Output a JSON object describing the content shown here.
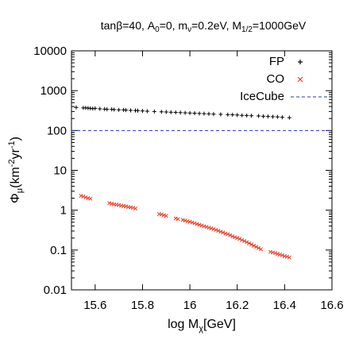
{
  "chart_data": {
    "type": "scatter",
    "title": {
      "main": "tanβ=40, A",
      "a0_sub": "0",
      "a0_rest": "=0, m",
      "nu_sub": "ν",
      "nu_rest": "=0.2eV, M",
      "m12_sub": "1/2",
      "m12_rest": "=1000GeV"
    },
    "xlabel": {
      "main": "log M",
      "sub": "χ",
      "rest": "[GeV]"
    },
    "ylabel": {
      "main": "Φ",
      "sub": "μ",
      "a": "(km",
      "sup1": "-2",
      "b": "yr",
      "sup2": "-1",
      "c": ")"
    },
    "xlim": [
      15.5,
      16.6
    ],
    "ylim": [
      0.01,
      10000
    ],
    "yscale": "log",
    "x_ticks": [
      15.6,
      15.8,
      16,
      16.2,
      16.4,
      16.6
    ],
    "x_tick_labels": [
      "15.6",
      "15.8",
      "16",
      "16.2",
      "16.4",
      "16.6"
    ],
    "y_ticks": [
      0.01,
      0.1,
      1,
      10,
      100,
      1000,
      10000
    ],
    "y_tick_labels": [
      "0.01",
      "0.1",
      "1",
      "10",
      "100",
      "1000",
      "10000"
    ],
    "grid": false,
    "legend_position": "top-right",
    "series": [
      {
        "name": "FP",
        "marker": "plus",
        "color": "#000000",
        "x": [
          15.52,
          15.55,
          15.56,
          15.57,
          15.58,
          15.59,
          15.6,
          15.62,
          15.64,
          15.65,
          15.67,
          15.68,
          15.7,
          15.72,
          15.73,
          15.75,
          15.77,
          15.78,
          15.8,
          15.82,
          15.85,
          15.88,
          15.9,
          15.92,
          15.94,
          15.96,
          15.98,
          16.0,
          16.02,
          16.04,
          16.06,
          16.08,
          16.1,
          16.13,
          16.16,
          16.18,
          16.2,
          16.22,
          16.24,
          16.26,
          16.29,
          16.31,
          16.33,
          16.35,
          16.37,
          16.39,
          16.42
        ],
        "y": [
          380,
          370,
          370,
          365,
          360,
          355,
          360,
          350,
          345,
          340,
          340,
          335,
          330,
          330,
          325,
          320,
          318,
          315,
          310,
          305,
          300,
          295,
          292,
          288,
          285,
          282,
          278,
          275,
          272,
          268,
          265,
          262,
          258,
          255,
          250,
          248,
          245,
          240,
          238,
          235,
          232,
          228,
          225,
          222,
          220,
          215,
          210
        ]
      },
      {
        "name": "CO",
        "marker": "cross",
        "color": "#e8402a",
        "x": [
          15.54,
          15.55,
          15.56,
          15.57,
          15.58,
          15.66,
          15.67,
          15.68,
          15.69,
          15.7,
          15.71,
          15.72,
          15.73,
          15.74,
          15.75,
          15.76,
          15.77,
          15.87,
          15.88,
          15.89,
          15.9,
          15.94,
          15.95,
          15.97,
          15.98,
          15.99,
          16.0,
          16.01,
          16.02,
          16.03,
          16.04,
          16.05,
          16.06,
          16.07,
          16.08,
          16.09,
          16.1,
          16.11,
          16.12,
          16.13,
          16.14,
          16.15,
          16.16,
          16.17,
          16.18,
          16.19,
          16.2,
          16.21,
          16.22,
          16.23,
          16.24,
          16.25,
          16.26,
          16.27,
          16.28,
          16.29,
          16.3,
          16.34,
          16.35,
          16.36,
          16.37,
          16.38,
          16.39,
          16.4,
          16.41,
          16.42
        ],
        "y": [
          2.3,
          2.2,
          2.1,
          2.0,
          1.95,
          1.5,
          1.45,
          1.4,
          1.38,
          1.35,
          1.3,
          1.28,
          1.25,
          1.2,
          1.18,
          1.15,
          1.1,
          0.8,
          0.78,
          0.75,
          0.72,
          0.62,
          0.6,
          0.57,
          0.55,
          0.53,
          0.51,
          0.49,
          0.47,
          0.45,
          0.43,
          0.41,
          0.395,
          0.38,
          0.365,
          0.35,
          0.335,
          0.32,
          0.305,
          0.29,
          0.275,
          0.26,
          0.25,
          0.235,
          0.22,
          0.21,
          0.2,
          0.19,
          0.178,
          0.168,
          0.158,
          0.148,
          0.138,
          0.128,
          0.12,
          0.112,
          0.105,
          0.09,
          0.087,
          0.084,
          0.08,
          0.077,
          0.074,
          0.07,
          0.068,
          0.065
        ]
      },
      {
        "name": "IceCube",
        "marker": "dashed-line",
        "color": "#2233cc",
        "y_constant": 100
      }
    ]
  }
}
